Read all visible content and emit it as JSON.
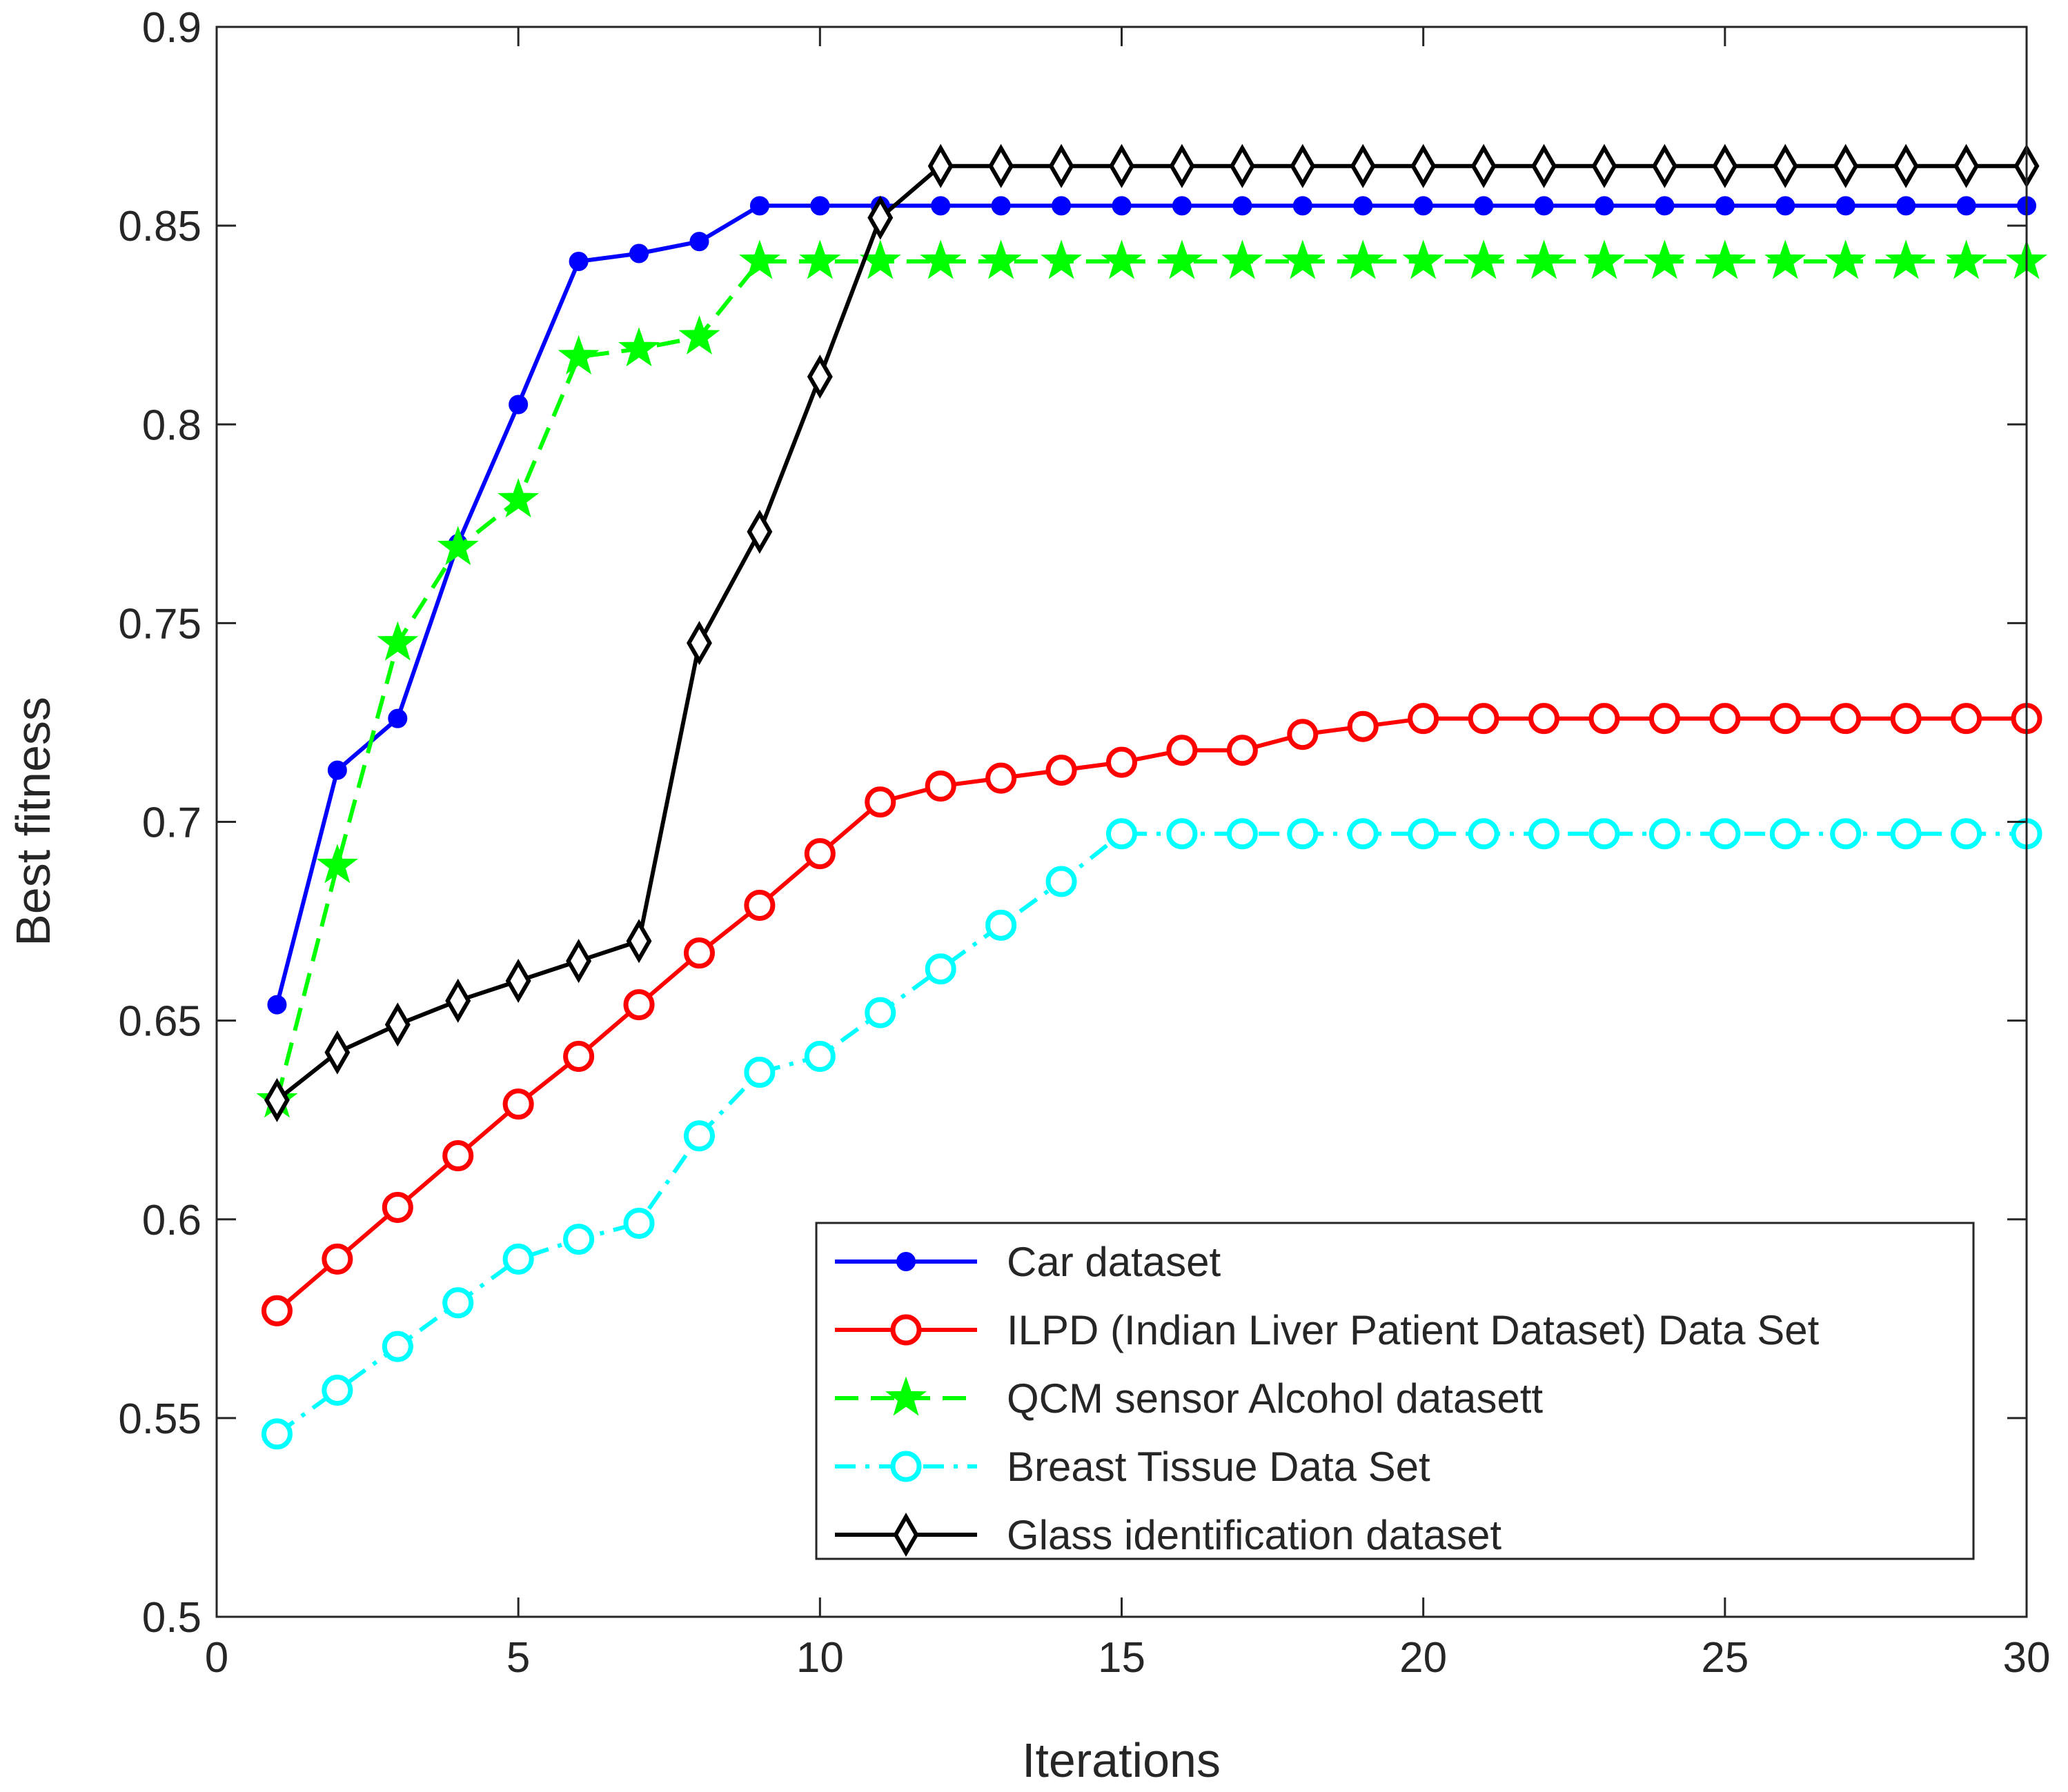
{
  "chart_data": {
    "type": "line",
    "title": "",
    "xlabel": "Iterations",
    "ylabel": "Best fitness",
    "xlim": [
      0,
      30
    ],
    "ylim": [
      0.5,
      0.9
    ],
    "xticks": [
      0,
      5,
      10,
      15,
      20,
      25,
      30
    ],
    "yticks": [
      0.5,
      0.55,
      0.6,
      0.65,
      0.7,
      0.75,
      0.8,
      0.85,
      0.9
    ],
    "xtick_labels": [
      "0",
      "5",
      "10",
      "15",
      "20",
      "25",
      "30"
    ],
    "ytick_labels": [
      "0.5",
      "0.55",
      "0.6",
      "0.65",
      "0.7",
      "0.75",
      "0.8",
      "0.85",
      "0.9"
    ],
    "grid": false,
    "legend_position": "bottom-right",
    "x": [
      1,
      2,
      3,
      4,
      5,
      6,
      7,
      8,
      9,
      10,
      11,
      12,
      13,
      14,
      15,
      16,
      17,
      18,
      19,
      20,
      21,
      22,
      23,
      24,
      25,
      26,
      27,
      28,
      29,
      30
    ],
    "series": [
      {
        "name": "Car dataset",
        "color": "#0000ff",
        "marker": "dot",
        "dash": "solid",
        "values": [
          0.654,
          0.713,
          0.726,
          0.77,
          0.805,
          0.841,
          0.843,
          0.846,
          0.855,
          0.855,
          0.855,
          0.855,
          0.855,
          0.855,
          0.855,
          0.855,
          0.855,
          0.855,
          0.855,
          0.855,
          0.855,
          0.855,
          0.855,
          0.855,
          0.855,
          0.855,
          0.855,
          0.855,
          0.855,
          0.855
        ]
      },
      {
        "name": "ILPD (Indian Liver Patient Dataset) Data Set",
        "color": "#ff0000",
        "marker": "circle",
        "dash": "solid",
        "values": [
          0.577,
          0.59,
          0.603,
          0.616,
          0.629,
          0.641,
          0.654,
          0.667,
          0.679,
          0.692,
          0.705,
          0.709,
          0.711,
          0.713,
          0.715,
          0.718,
          0.718,
          0.722,
          0.724,
          0.726,
          0.726,
          0.726,
          0.726,
          0.726,
          0.726,
          0.726,
          0.726,
          0.726,
          0.726,
          0.726
        ]
      },
      {
        "name": "QCM sensor Alcohol datasett",
        "color": "#00ff00",
        "marker": "star",
        "dash": "dashed",
        "values": [
          0.63,
          0.689,
          0.745,
          0.769,
          0.781,
          0.817,
          0.819,
          0.822,
          0.841,
          0.841,
          0.841,
          0.841,
          0.841,
          0.841,
          0.841,
          0.841,
          0.841,
          0.841,
          0.841,
          0.841,
          0.841,
          0.841,
          0.841,
          0.841,
          0.841,
          0.841,
          0.841,
          0.841,
          0.841,
          0.841
        ]
      },
      {
        "name": "Breast Tissue Data Set",
        "color": "#00ffff",
        "marker": "circle",
        "dash": "dashdot",
        "values": [
          0.546,
          0.557,
          0.568,
          0.579,
          0.59,
          0.595,
          0.599,
          0.621,
          0.637,
          0.641,
          0.652,
          0.663,
          0.674,
          0.685,
          0.697,
          0.697,
          0.697,
          0.697,
          0.697,
          0.697,
          0.697,
          0.697,
          0.697,
          0.697,
          0.697,
          0.697,
          0.697,
          0.697,
          0.697,
          0.697
        ]
      },
      {
        "name": "Glass identification dataset",
        "color": "#000000",
        "marker": "diamond",
        "dash": "solid",
        "values": [
          0.63,
          0.642,
          0.649,
          0.655,
          0.66,
          0.665,
          0.67,
          0.745,
          0.773,
          0.812,
          0.852,
          0.865,
          0.865,
          0.865,
          0.865,
          0.865,
          0.865,
          0.865,
          0.865,
          0.865,
          0.865,
          0.865,
          0.865,
          0.865,
          0.865,
          0.865,
          0.865,
          0.865,
          0.865,
          0.865
        ]
      }
    ]
  }
}
